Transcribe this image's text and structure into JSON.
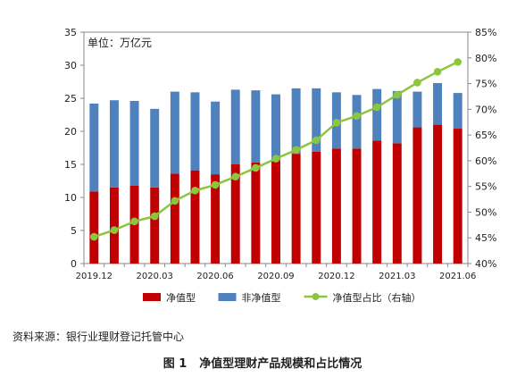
{
  "chart_data": {
    "type": "bar",
    "unit_label": "单位：万亿元",
    "categories": [
      "2019.12",
      "2020.01",
      "2020.02",
      "2020.03",
      "2020.04",
      "2020.05",
      "2020.06",
      "2020.07",
      "2020.08",
      "2020.09",
      "2020.10",
      "2020.11",
      "2020.12",
      "2021.01",
      "2021.02",
      "2021.03",
      "2021.04",
      "2021.05",
      "2021.06"
    ],
    "x_tick_labels": [
      "2019.12",
      "",
      "",
      "2020.03",
      "",
      "",
      "2020.06",
      "",
      "",
      "2020.09",
      "",
      "",
      "2020.12",
      "",
      "",
      "2021.03",
      "",
      "",
      "2021.06"
    ],
    "stacked": true,
    "series": [
      {
        "name": "净值型",
        "type": "bar",
        "axis": "left",
        "color": "#c00000",
        "values": [
          10.9,
          11.5,
          11.8,
          11.5,
          13.6,
          14.1,
          13.5,
          15.0,
          15.3,
          15.6,
          16.6,
          16.9,
          17.4,
          17.4,
          18.6,
          18.2,
          20.6,
          21.0,
          20.4
        ]
      },
      {
        "name": "非净值型",
        "type": "bar",
        "axis": "left",
        "color": "#4f81bd",
        "values": [
          13.3,
          13.2,
          12.8,
          11.9,
          12.4,
          11.8,
          11.0,
          11.3,
          10.9,
          10.0,
          9.9,
          9.6,
          8.5,
          8.1,
          7.8,
          7.9,
          5.4,
          6.3,
          5.4
        ]
      },
      {
        "name": "净值型占比（右轴）",
        "type": "line",
        "axis": "right",
        "color": "#8cc63f",
        "values": [
          45.2,
          46.5,
          48.2,
          49.2,
          52.2,
          54.2,
          55.3,
          56.9,
          58.6,
          60.4,
          62.1,
          64.0,
          67.4,
          68.7,
          70.4,
          72.8,
          75.2,
          77.3,
          79.2
        ]
      }
    ],
    "y_left": {
      "min": 0,
      "max": 35,
      "ticks": [
        "0",
        "5",
        "10",
        "15",
        "20",
        "25",
        "30",
        "35"
      ]
    },
    "y_right": {
      "min": 40,
      "max": 85,
      "ticks": [
        "40%",
        "45%",
        "50%",
        "55%",
        "60%",
        "65%",
        "70%",
        "75%",
        "80%",
        "85%"
      ]
    },
    "grid": false,
    "legend_position": "bottom"
  },
  "source_text": "资料来源：银行业理财登记托管中心",
  "figure": {
    "number": "图 1",
    "title": "净值型理财产品规模和占比情况"
  }
}
